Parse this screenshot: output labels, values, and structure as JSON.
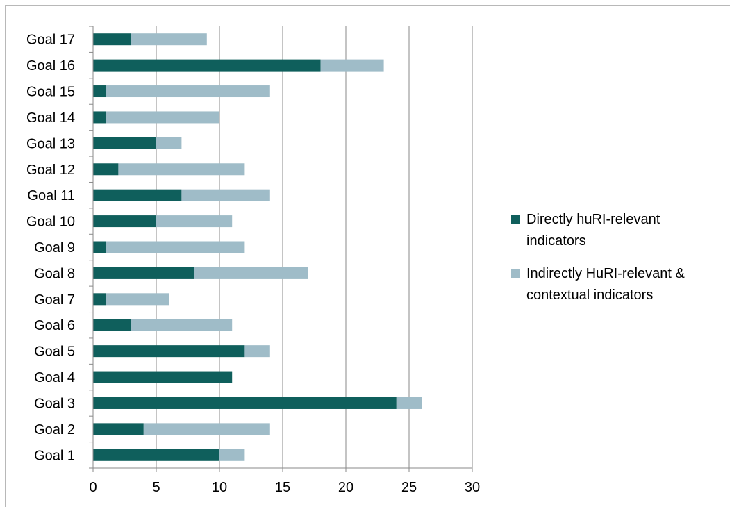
{
  "chart_data": {
    "type": "bar",
    "orientation": "horizontal",
    "stacked": true,
    "categories": [
      "Goal 1",
      "Goal 2",
      "Goal 3",
      "Goal 4",
      "Goal 5",
      "Goal 6",
      "Goal 7",
      "Goal 8",
      "Goal 9",
      "Goal 10",
      "Goal 11",
      "Goal 12",
      "Goal 13",
      "Goal 14",
      "Goal 15",
      "Goal 16",
      "Goal 17"
    ],
    "series": [
      {
        "name": "Directly huRI-relevant indicators",
        "name_lines": [
          "Directly huRI-relevant",
          "indicators"
        ],
        "color": "#0f5f5c",
        "values": [
          10,
          4,
          24,
          11,
          12,
          3,
          1,
          8,
          1,
          5,
          7,
          2,
          5,
          1,
          1,
          18,
          3
        ]
      },
      {
        "name": "Indirectly HuRI-relevant & contextual indicators",
        "name_lines": [
          "Indirectly HuRI-relevant &",
          "contextual indicators"
        ],
        "color": "#9fbcc8",
        "values": [
          2,
          10,
          2,
          0,
          2,
          8,
          5,
          9,
          11,
          6,
          7,
          10,
          2,
          9,
          13,
          5,
          6
        ]
      }
    ],
    "xlim": [
      0,
      30
    ],
    "xticks": [
      0,
      5,
      10,
      15,
      20,
      25,
      30
    ],
    "title": "",
    "xlabel": "",
    "ylabel": "",
    "grid": "vertical",
    "legend": "right"
  }
}
